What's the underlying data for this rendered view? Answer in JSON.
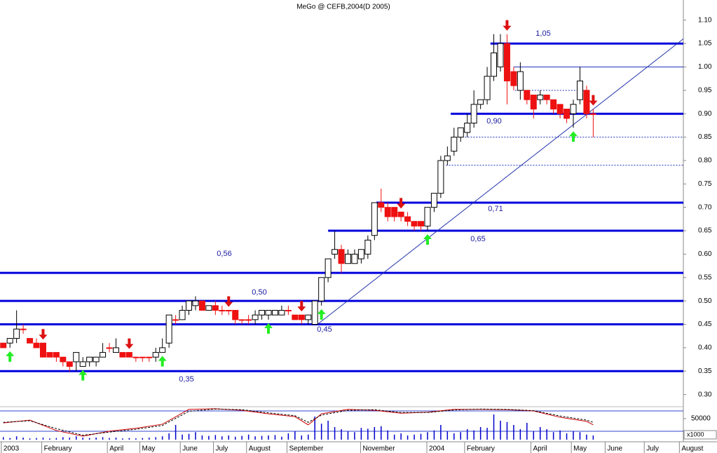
{
  "chart_data": {
    "type": "candlestick",
    "title": "MeGo @ CEFB,2004(D 2005)",
    "x": [
      0,
      1,
      2,
      3,
      4,
      5,
      6,
      7,
      8,
      9,
      10,
      11,
      12,
      13,
      14,
      15,
      16,
      17,
      18,
      19,
      20,
      21,
      22,
      23,
      24,
      25,
      26,
      27,
      28,
      29,
      30,
      31,
      32,
      33,
      34,
      35,
      36,
      37,
      38,
      39,
      40,
      41,
      42,
      43,
      44,
      45,
      46,
      47,
      48,
      49,
      50,
      51,
      52,
      53,
      54,
      55,
      56,
      57,
      58,
      59,
      60,
      61,
      62,
      63,
      64,
      65,
      66,
      67,
      68,
      69,
      70,
      71,
      72,
      73,
      74,
      75,
      76,
      77,
      78,
      79,
      80,
      81,
      82,
      83,
      84,
      85,
      86,
      87,
      88,
      89
    ],
    "open": [
      0.41,
      0.41,
      0.42,
      0.44,
      0.42,
      0.41,
      0.41,
      0.39,
      0.39,
      0.38,
      0.37,
      0.37,
      0.36,
      0.37,
      0.37,
      0.38,
      0.4,
      0.39,
      0.39,
      0.39,
      0.38,
      0.38,
      0.38,
      0.38,
      0.39,
      0.41,
      0.46,
      0.46,
      0.48,
      0.49,
      0.5,
      0.48,
      0.49,
      0.48,
      0.48,
      0.48,
      0.46,
      0.46,
      0.46,
      0.47,
      0.47,
      0.47,
      0.47,
      0.48,
      0.47,
      0.47,
      0.46,
      0.45,
      0.5,
      0.55,
      0.6,
      0.61,
      0.58,
      0.58,
      0.59,
      0.6,
      0.64,
      0.71,
      0.7,
      0.7,
      0.69,
      0.68,
      0.67,
      0.67,
      0.66,
      0.7,
      0.73,
      0.8,
      0.82,
      0.85,
      0.86,
      0.88,
      0.92,
      0.93,
      0.98,
      1.0,
      1.05,
      0.99,
      0.95,
      0.95,
      0.94,
      0.93,
      0.94,
      0.93,
      0.92,
      0.91,
      0.9,
      0.93,
      0.95,
      0.9
    ],
    "high": [
      0.41,
      0.42,
      0.48,
      0.45,
      0.42,
      0.42,
      0.41,
      0.39,
      0.39,
      0.38,
      0.37,
      0.39,
      0.38,
      0.38,
      0.38,
      0.41,
      0.41,
      0.42,
      0.39,
      0.39,
      0.38,
      0.38,
      0.38,
      0.4,
      0.42,
      0.47,
      0.47,
      0.49,
      0.5,
      0.51,
      0.5,
      0.49,
      0.5,
      0.49,
      0.48,
      0.48,
      0.46,
      0.47,
      0.48,
      0.48,
      0.48,
      0.48,
      0.49,
      0.49,
      0.47,
      0.47,
      0.47,
      0.5,
      0.55,
      0.59,
      0.65,
      0.62,
      0.61,
      0.61,
      0.61,
      0.64,
      0.71,
      0.74,
      0.71,
      0.7,
      0.69,
      0.69,
      0.67,
      0.67,
      0.7,
      0.73,
      0.81,
      0.83,
      0.87,
      0.87,
      0.9,
      0.95,
      0.93,
      1.0,
      1.07,
      1.07,
      1.07,
      1.0,
      1.01,
      0.95,
      0.94,
      0.95,
      0.94,
      0.93,
      0.92,
      0.91,
      0.93,
      1.0,
      0.96,
      0.91
    ],
    "low": [
      0.4,
      0.4,
      0.41,
      0.43,
      0.41,
      0.4,
      0.38,
      0.38,
      0.37,
      0.36,
      0.35,
      0.35,
      0.36,
      0.36,
      0.36,
      0.38,
      0.39,
      0.39,
      0.38,
      0.38,
      0.37,
      0.37,
      0.37,
      0.37,
      0.39,
      0.4,
      0.45,
      0.46,
      0.47,
      0.48,
      0.48,
      0.48,
      0.47,
      0.47,
      0.47,
      0.45,
      0.45,
      0.45,
      0.45,
      0.46,
      0.46,
      0.47,
      0.47,
      0.47,
      0.46,
      0.45,
      0.45,
      0.45,
      0.49,
      0.54,
      0.59,
      0.56,
      0.58,
      0.58,
      0.58,
      0.59,
      0.63,
      0.69,
      0.67,
      0.67,
      0.67,
      0.66,
      0.65,
      0.65,
      0.65,
      0.69,
      0.72,
      0.79,
      0.81,
      0.84,
      0.85,
      0.87,
      0.91,
      0.92,
      0.97,
      0.99,
      0.92,
      0.95,
      0.93,
      0.92,
      0.89,
      0.92,
      0.92,
      0.9,
      0.89,
      0.88,
      0.87,
      0.92,
      0.89,
      0.85
    ],
    "close": [
      0.4,
      0.42,
      0.44,
      0.44,
      0.41,
      0.4,
      0.38,
      0.38,
      0.38,
      0.37,
      0.36,
      0.39,
      0.37,
      0.38,
      0.38,
      0.39,
      0.4,
      0.4,
      0.38,
      0.38,
      0.38,
      0.38,
      0.38,
      0.39,
      0.4,
      0.47,
      0.46,
      0.48,
      0.5,
      0.5,
      0.48,
      0.49,
      0.48,
      0.48,
      0.48,
      0.46,
      0.46,
      0.46,
      0.47,
      0.48,
      0.48,
      0.48,
      0.48,
      0.48,
      0.46,
      0.46,
      0.47,
      0.5,
      0.55,
      0.59,
      0.61,
      0.58,
      0.6,
      0.6,
      0.61,
      0.63,
      0.71,
      0.7,
      0.68,
      0.68,
      0.68,
      0.67,
      0.66,
      0.66,
      0.7,
      0.73,
      0.8,
      0.81,
      0.85,
      0.87,
      0.88,
      0.92,
      0.93,
      0.98,
      1.03,
      1.05,
      0.97,
      0.96,
      0.99,
      0.93,
      0.91,
      0.94,
      0.93,
      0.91,
      0.9,
      0.89,
      0.92,
      0.97,
      0.9,
      0.9
    ],
    "up_color": "#ffffff",
    "down_color": "#ee1111",
    "xlim": [
      -0.5,
      102.6
    ],
    "xticks": [
      {
        "value": -0.3,
        "label": "2003"
      },
      {
        "value": 5.8,
        "label": "February"
      },
      {
        "value": 15.7,
        "label": "April"
      },
      {
        "value": 20.6,
        "label": "May"
      },
      {
        "value": 26.7,
        "label": "June"
      },
      {
        "value": 31.7,
        "label": "July"
      },
      {
        "value": 36.7,
        "label": "August"
      },
      {
        "value": 42.8,
        "label": "September"
      },
      {
        "value": 53.9,
        "label": "November"
      },
      {
        "value": 63.9,
        "label": "2004"
      },
      {
        "value": 69.6,
        "label": "February"
      },
      {
        "value": 79.6,
        "label": "April"
      },
      {
        "value": 85.7,
        "label": "May"
      },
      {
        "value": 90.8,
        "label": "June"
      },
      {
        "value": 96.7,
        "label": "July"
      },
      {
        "value": 102.0,
        "label": "August"
      }
    ],
    "ylim": [
      0.28,
      1.143
    ],
    "yticks": [
      {
        "value": 0.3,
        "label": "0.30"
      },
      {
        "value": 0.35,
        "label": "0.35"
      },
      {
        "value": 0.4,
        "label": "0.40"
      },
      {
        "value": 0.45,
        "label": "0.45"
      },
      {
        "value": 0.5,
        "label": "0.50"
      },
      {
        "value": 0.55,
        "label": "0.55"
      },
      {
        "value": 0.6,
        "label": "0.60"
      },
      {
        "value": 0.65,
        "label": "0.65"
      },
      {
        "value": 0.7,
        "label": "0.70"
      },
      {
        "value": 0.75,
        "label": "0.75"
      },
      {
        "value": 0.8,
        "label": "0.80"
      },
      {
        "value": 0.85,
        "label": "0.85"
      },
      {
        "value": 0.9,
        "label": "0.90"
      },
      {
        "value": 0.95,
        "label": "0.95"
      },
      {
        "value": 1.0,
        "label": "1.00"
      },
      {
        "value": 1.05,
        "label": "1.05"
      },
      {
        "value": 1.1,
        "label": "1.10"
      }
    ],
    "levels": [
      {
        "value": 1.05,
        "label": "1,05",
        "from": 73.5
      },
      {
        "value": 0.9,
        "label": "0,90",
        "from": 67.5
      },
      {
        "value": 0.71,
        "label": "0,71",
        "from": 56.3
      },
      {
        "value": 0.65,
        "label": "0,65",
        "from": 49
      },
      {
        "value": 0.56,
        "label": "0,56"
      },
      {
        "value": 0.5,
        "label": "0,50"
      },
      {
        "value": 0.45,
        "label": "0,45"
      },
      {
        "value": 0.35,
        "label": "0,35"
      }
    ],
    "level_color": "#0000dd",
    "guides": [
      {
        "value": 1.0,
        "from": 77
      },
      {
        "value": 0.95,
        "from": 77.2,
        "to": 88.4,
        "dashed": true
      },
      {
        "value": 0.85,
        "from": 68.8,
        "dashed": true
      },
      {
        "value": 0.79,
        "from": 66.8,
        "dashed": true
      }
    ],
    "trendline": {
      "x": [
        47.4,
        102.6
      ],
      "y": [
        0.45,
        1.06
      ],
      "color": "#2233aa"
    },
    "sell_signals": [
      6,
      19,
      34,
      45,
      60,
      76,
      89
    ],
    "buy_signals": [
      1,
      12,
      24,
      40,
      48,
      64,
      86
    ],
    "sell_color": "#dd1111",
    "buy_color": "#22ee22",
    "volume": {
      "values": [
        6000,
        4000,
        8000,
        5000,
        3000,
        4000,
        5000,
        3000,
        4000,
        6000,
        5000,
        8000,
        5000,
        4000,
        5000,
        6000,
        4000,
        5000,
        3000,
        4000,
        3000,
        4000,
        5000,
        6000,
        8000,
        15000,
        35000,
        12000,
        14000,
        18000,
        10000,
        9000,
        11000,
        8000,
        10000,
        7000,
        9000,
        12000,
        8000,
        9000,
        10000,
        11000,
        7000,
        15000,
        20000,
        10000,
        12000,
        55000,
        38000,
        45000,
        30000,
        25000,
        20000,
        18000,
        28000,
        26000,
        30000,
        32000,
        22000,
        12000,
        15000,
        10000,
        12000,
        14000,
        18000,
        22000,
        35000,
        20000,
        15000,
        18000,
        25000,
        22000,
        30000,
        28000,
        60000,
        45000,
        42000,
        35000,
        25000,
        40000,
        20000,
        30000,
        25000,
        18000,
        22000,
        15000,
        20000,
        18000,
        12000,
        10000
      ],
      "color": "#0000cc",
      "ylim": [
        0,
        75000
      ],
      "yticks": [
        50000
      ],
      "unit_label": "x1000"
    },
    "oscillator": {
      "x": [
        0,
        4,
        8,
        12,
        16,
        20,
        24,
        28,
        32,
        36,
        40,
        44,
        46,
        48,
        52,
        56,
        60,
        64,
        68,
        72,
        76,
        80,
        84,
        88,
        89
      ],
      "ylim": [
        0,
        100
      ],
      "series": [
        {
          "color": "#cc0000",
          "values": [
            53,
            62,
            29,
            11,
            27,
            36,
            49,
            96,
            98,
            93,
            82,
            73,
            47,
            82,
            96,
            93,
            84,
            87,
            96,
            96,
            95,
            91,
            71,
            58,
            47
          ]
        },
        {
          "color": "#000000",
          "dashed": true,
          "values": [
            55,
            60,
            35,
            14,
            24,
            33,
            45,
            90,
            97,
            95,
            85,
            76,
            55,
            78,
            93,
            95,
            86,
            86,
            94,
            97,
            96,
            92,
            75,
            62,
            55
          ]
        }
      ]
    }
  }
}
